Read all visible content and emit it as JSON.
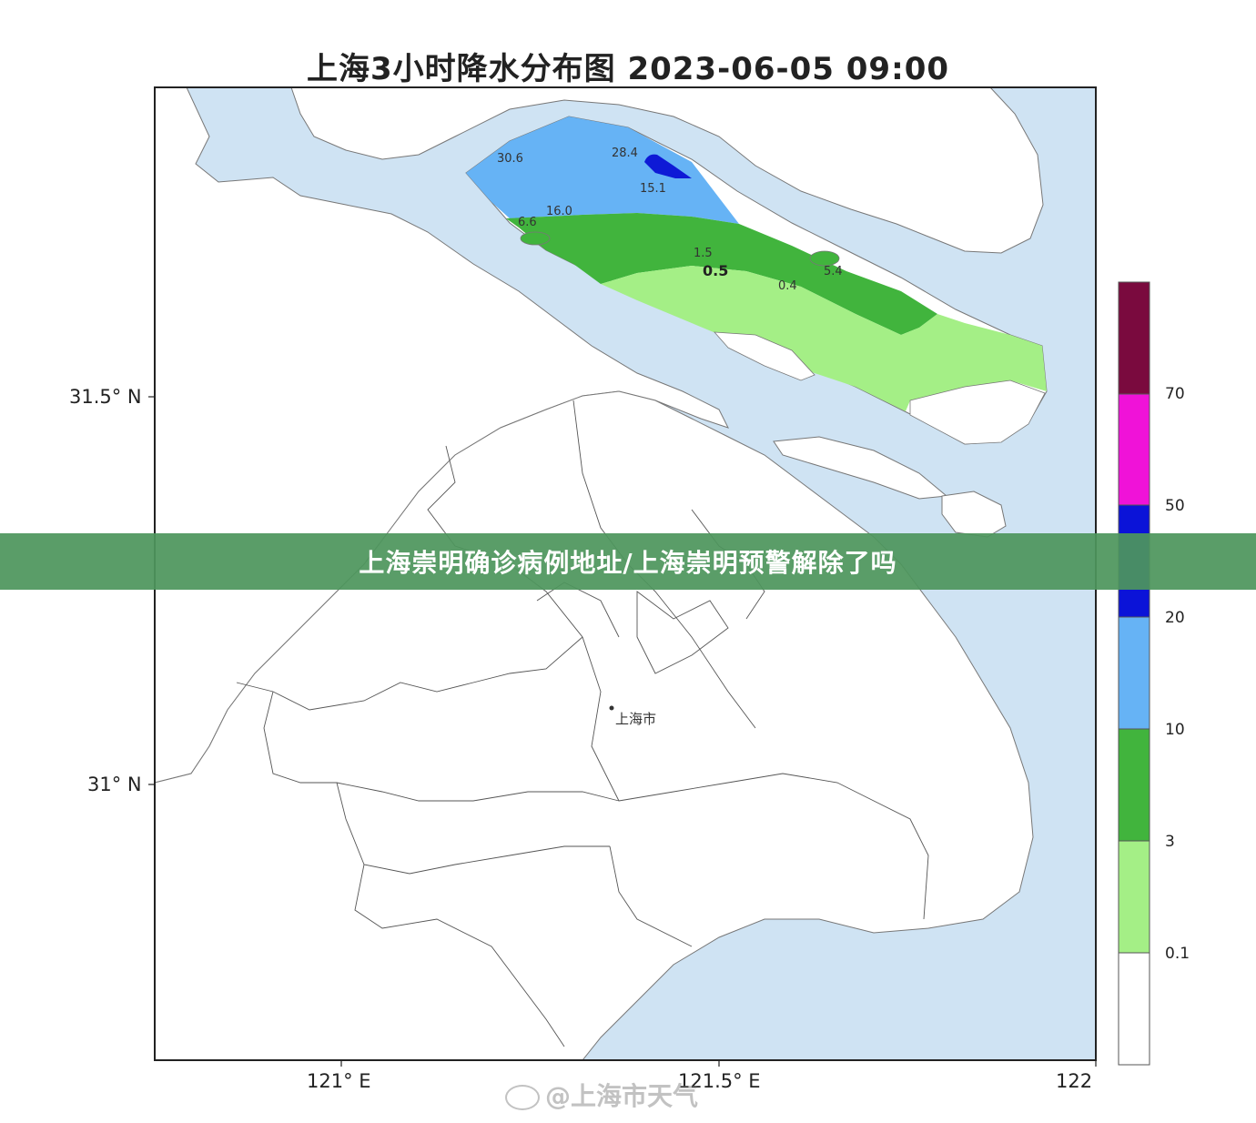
{
  "map": {
    "title": "上海3小时降水分布图 2023-06-05 09:00",
    "city_label": "上海市",
    "lat_labels": [
      "31.5° N",
      "31° N"
    ],
    "lon_labels": [
      "121° E",
      "121.5° E",
      "122"
    ],
    "value_labels": [
      "30.6",
      "28.4",
      "15.1",
      "16.0",
      "6.6",
      "1.5",
      "0.5",
      "0.4",
      "5.4"
    ],
    "colors": {
      "sea": "#cfe3f3",
      "land": "#ffffff",
      "rain_10_20": "#66b3f5",
      "rain_20_50": "#0e1ad6",
      "rain_3_10": "#41b43d",
      "rain_0_1_3": "#a4ef86"
    }
  },
  "legend": {
    "labels": [
      "70",
      "50",
      "20",
      "10",
      "3",
      "0.1"
    ],
    "colors": [
      "#7a0a3e",
      "#f012d8",
      "#0b13d8",
      "#66b3f5",
      "#41b43d",
      "#a4ef86",
      "#ffffff"
    ]
  },
  "banner": {
    "text": "上海崇明确诊病例地址/上海崇明预警解除了吗",
    "color": "#4e965c"
  },
  "watermark": {
    "text": "@上海市天气"
  }
}
